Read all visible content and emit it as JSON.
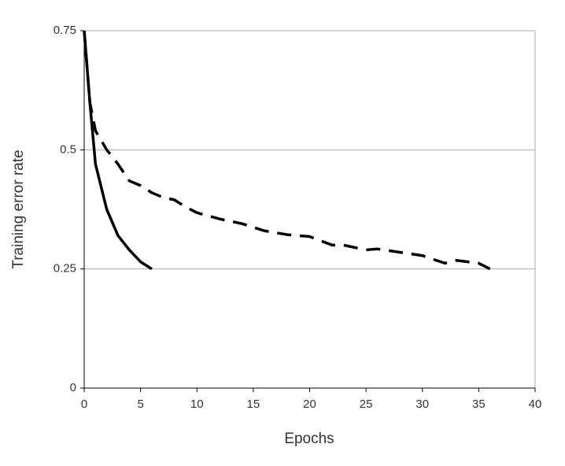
{
  "chart_data": {
    "type": "line",
    "xlabel": "Epochs",
    "ylabel": "Training error rate",
    "xlim": [
      0,
      40
    ],
    "xticks": [
      0,
      5,
      10,
      15,
      20,
      25,
      30,
      35,
      40
    ],
    "ylim": [
      0,
      0.75
    ],
    "yticks": [
      0,
      0.25,
      0.5,
      0.75
    ],
    "grid": true,
    "series": [
      {
        "color": "#000000",
        "linestyle": "solid",
        "x": [
          0,
          0.5,
          1,
          2,
          3,
          4,
          5,
          6
        ],
        "values": [
          0.75,
          0.6,
          0.47,
          0.375,
          0.32,
          0.29,
          0.265,
          0.25
        ]
      },
      {
        "color": "#000000",
        "linestyle": "dashed",
        "x": [
          0,
          0.5,
          1,
          2,
          3,
          4,
          5,
          6,
          7,
          8,
          9,
          10,
          12,
          14,
          16,
          18,
          20,
          22,
          23,
          25,
          26,
          28,
          30,
          32,
          33,
          35,
          36
        ],
        "values": [
          0.75,
          0.6,
          0.54,
          0.5,
          0.47,
          0.435,
          0.425,
          0.41,
          0.4,
          0.395,
          0.38,
          0.368,
          0.355,
          0.345,
          0.33,
          0.322,
          0.318,
          0.3,
          0.3,
          0.29,
          0.292,
          0.285,
          0.278,
          0.262,
          0.268,
          0.262,
          0.25
        ]
      }
    ]
  }
}
